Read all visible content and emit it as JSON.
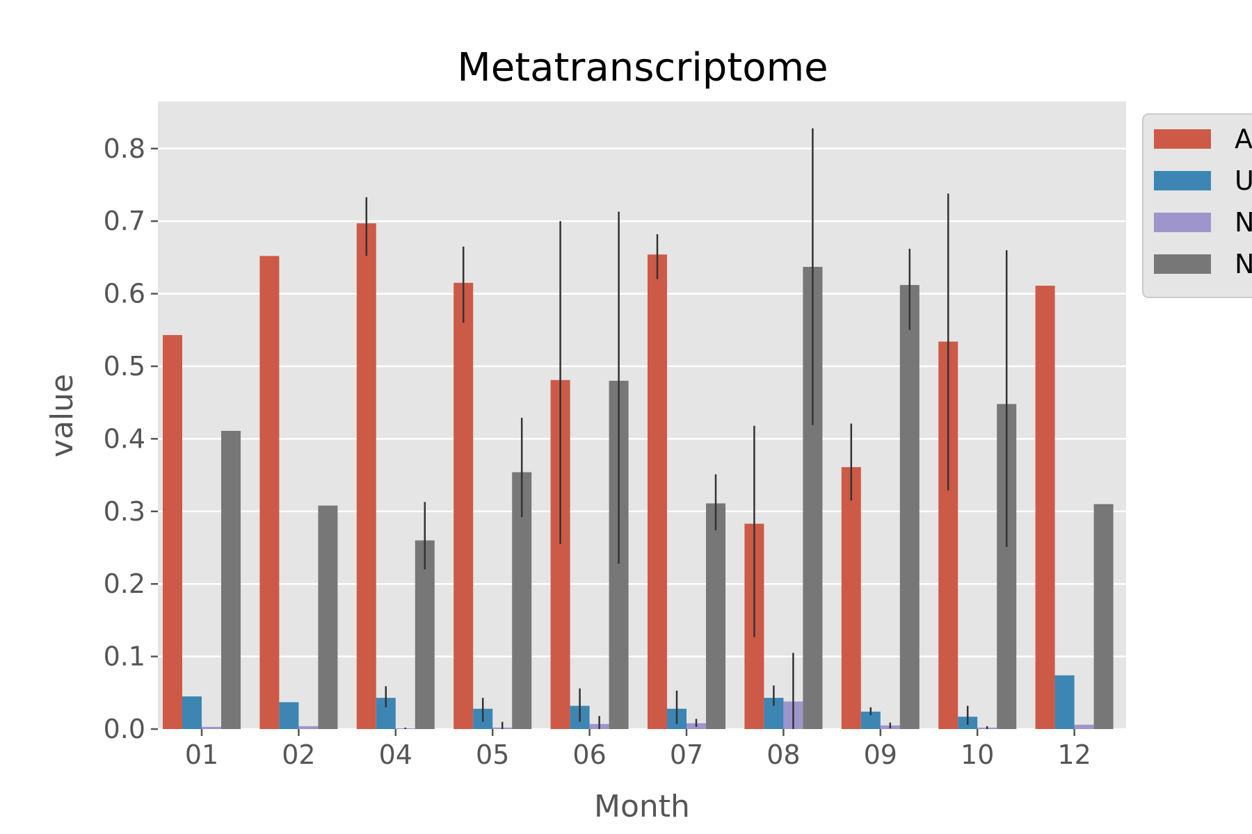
{
  "colors": {
    "background": "#ffffff",
    "plot_area": "#e5e5e5",
    "grid": "#ffffff",
    "tick_text": "#555555",
    "error_bar": "#333333"
  },
  "chart_data": {
    "type": "bar",
    "title": "Metatranscriptome",
    "xlabel": "Month",
    "ylabel": "value",
    "ylim": [
      0,
      0.86
    ],
    "yticks": [
      "0.0",
      "0.1",
      "0.2",
      "0.3",
      "0.4",
      "0.5",
      "0.6",
      "0.7",
      "0.8"
    ],
    "grid": true,
    "legend_position": "top-right (outside, clipped)",
    "categories": [
      "01",
      "02",
      "04",
      "05",
      "06",
      "07",
      "08",
      "09",
      "10",
      "12"
    ],
    "series": [
      {
        "name": "A",
        "color": "#cc5a47",
        "values": [
          0.543,
          0.652,
          0.697,
          0.615,
          0.481,
          0.654,
          0.283,
          0.361,
          0.534,
          0.611
        ],
        "errors": [
          null,
          null,
          [
            0.652,
            0.733
          ],
          [
            0.56,
            0.665
          ],
          [
            0.255,
            0.7
          ],
          [
            0.62,
            0.682
          ],
          [
            0.127,
            0.418
          ],
          [
            0.315,
            0.421
          ],
          [
            0.329,
            0.738
          ],
          null
        ]
      },
      {
        "name": "U",
        "color": "#3d86b4",
        "values": [
          0.045,
          0.037,
          0.043,
          0.028,
          0.032,
          0.028,
          0.043,
          0.024,
          0.017,
          0.074
        ],
        "errors": [
          null,
          null,
          [
            0.03,
            0.059
          ],
          [
            0.01,
            0.043
          ],
          [
            0.01,
            0.056
          ],
          [
            0.007,
            0.053
          ],
          [
            0.032,
            0.06
          ],
          [
            0.019,
            0.03
          ],
          [
            0.006,
            0.032
          ],
          null
        ]
      },
      {
        "name": "N",
        "color": "#9d95cb",
        "values": [
          0.003,
          0.004,
          0.001,
          0.002,
          0.007,
          0.008,
          0.038,
          0.005,
          0.002,
          0.006
        ],
        "errors": [
          null,
          null,
          [
            0.0,
            0.002
          ],
          [
            0.0,
            0.01
          ],
          [
            0.0,
            0.018
          ],
          [
            0.003,
            0.014
          ],
          [
            0.0,
            0.105
          ],
          [
            0.001,
            0.009
          ],
          [
            0.0,
            0.004
          ],
          null
        ]
      },
      {
        "name": "N",
        "color": "#777777",
        "values": [
          0.411,
          0.308,
          0.26,
          0.354,
          0.48,
          0.311,
          0.637,
          0.612,
          null,
          0.31
        ],
        "values_override": [
          0.411,
          0.308,
          0.26,
          0.354,
          0.48,
          0.311,
          0.637,
          0.612,
          0.448,
          0.31
        ],
        "errors": [
          null,
          null,
          [
            0.22,
            0.313
          ],
          [
            0.292,
            0.429
          ],
          [
            0.228,
            0.713
          ],
          [
            0.274,
            0.351
          ],
          [
            0.419,
            0.828
          ],
          [
            0.55,
            0.662
          ],
          [
            0.251,
            0.66
          ],
          null
        ]
      }
    ]
  }
}
